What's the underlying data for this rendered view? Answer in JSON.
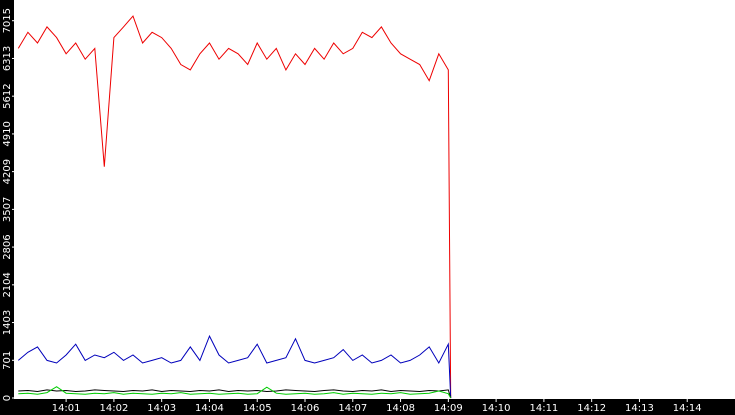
{
  "chart_data": {
    "type": "line",
    "x": [
      0,
      0.2,
      0.4,
      0.6,
      0.8,
      1.0,
      1.2,
      1.4,
      1.6,
      1.8,
      2.0,
      2.2,
      2.4,
      2.6,
      2.8,
      3.0,
      3.2,
      3.4,
      3.6,
      3.8,
      4.0,
      4.2,
      4.4,
      4.6,
      4.8,
      5.0,
      5.2,
      5.4,
      5.6,
      5.8,
      6.0,
      6.2,
      6.4,
      6.6,
      6.8,
      7.0,
      7.2,
      7.4,
      7.6,
      7.8,
      8.0,
      8.2,
      8.4,
      8.6,
      8.8,
      9.0,
      9.05
    ],
    "series": [
      {
        "color": "#ee0000",
        "values": [
          6500,
          6800,
          6600,
          6900,
          6700,
          6400,
          6600,
          6300,
          6500,
          4300,
          6700,
          6900,
          7100,
          6600,
          6800,
          6700,
          6500,
          6200,
          6100,
          6400,
          6600,
          6300,
          6500,
          6400,
          6200,
          6600,
          6300,
          6500,
          6100,
          6400,
          6200,
          6500,
          6300,
          6600,
          6400,
          6500,
          6800,
          6700,
          6900,
          6600,
          6400,
          6300,
          6200,
          5900,
          6400,
          6100,
          0
        ]
      },
      {
        "color": "#0000bb",
        "values": [
          700,
          850,
          950,
          700,
          650,
          800,
          1000,
          700,
          800,
          750,
          850,
          700,
          800,
          650,
          700,
          750,
          650,
          700,
          950,
          700,
          1150,
          800,
          650,
          700,
          750,
          1000,
          650,
          700,
          750,
          1100,
          700,
          650,
          700,
          750,
          900,
          700,
          800,
          650,
          700,
          800,
          650,
          700,
          800,
          950,
          650,
          1000,
          0
        ]
      },
      {
        "color": "#000000",
        "values": [
          130,
          140,
          120,
          150,
          130,
          140,
          120,
          130,
          150,
          140,
          130,
          120,
          140,
          130,
          150,
          120,
          140,
          130,
          120,
          140,
          130,
          150,
          120,
          140,
          130,
          140,
          120,
          130,
          150,
          140,
          130,
          120,
          140,
          150,
          130,
          120,
          140,
          130,
          150,
          120,
          140,
          130,
          120,
          140,
          130,
          150,
          0
        ]
      },
      {
        "color": "#00cc00",
        "values": [
          80,
          90,
          70,
          100,
          210,
          90,
          80,
          70,
          90,
          80,
          100,
          70,
          90,
          80,
          70,
          90,
          80,
          100,
          70,
          80,
          90,
          70,
          80,
          90,
          70,
          80,
          200,
          90,
          70,
          80,
          90,
          70,
          80,
          100,
          70,
          90,
          80,
          70,
          90,
          80,
          100,
          70,
          80,
          90,
          130,
          80,
          0
        ]
      }
    ],
    "xlim": [
      -0.07,
      15.0
    ],
    "xticks": [
      {
        "value": 1,
        "label": "14:01"
      },
      {
        "value": 2,
        "label": "14:02"
      },
      {
        "value": 3,
        "label": "14:03"
      },
      {
        "value": 4,
        "label": "14:04"
      },
      {
        "value": 5,
        "label": "14:05"
      },
      {
        "value": 6,
        "label": "14:06"
      },
      {
        "value": 7,
        "label": "14:07"
      },
      {
        "value": 8,
        "label": "14:08"
      },
      {
        "value": 9,
        "label": "14:09"
      },
      {
        "value": 10,
        "label": "14:10"
      },
      {
        "value": 11,
        "label": "14:11"
      },
      {
        "value": 12,
        "label": "14:12"
      },
      {
        "value": 13,
        "label": "14:13"
      },
      {
        "value": 14,
        "label": "14:14"
      }
    ],
    "ylim": [
      0,
      7400
    ],
    "yticks": [
      0,
      701,
      1403,
      2104,
      2806,
      3507,
      4209,
      4910,
      5612,
      6313,
      7015
    ]
  }
}
